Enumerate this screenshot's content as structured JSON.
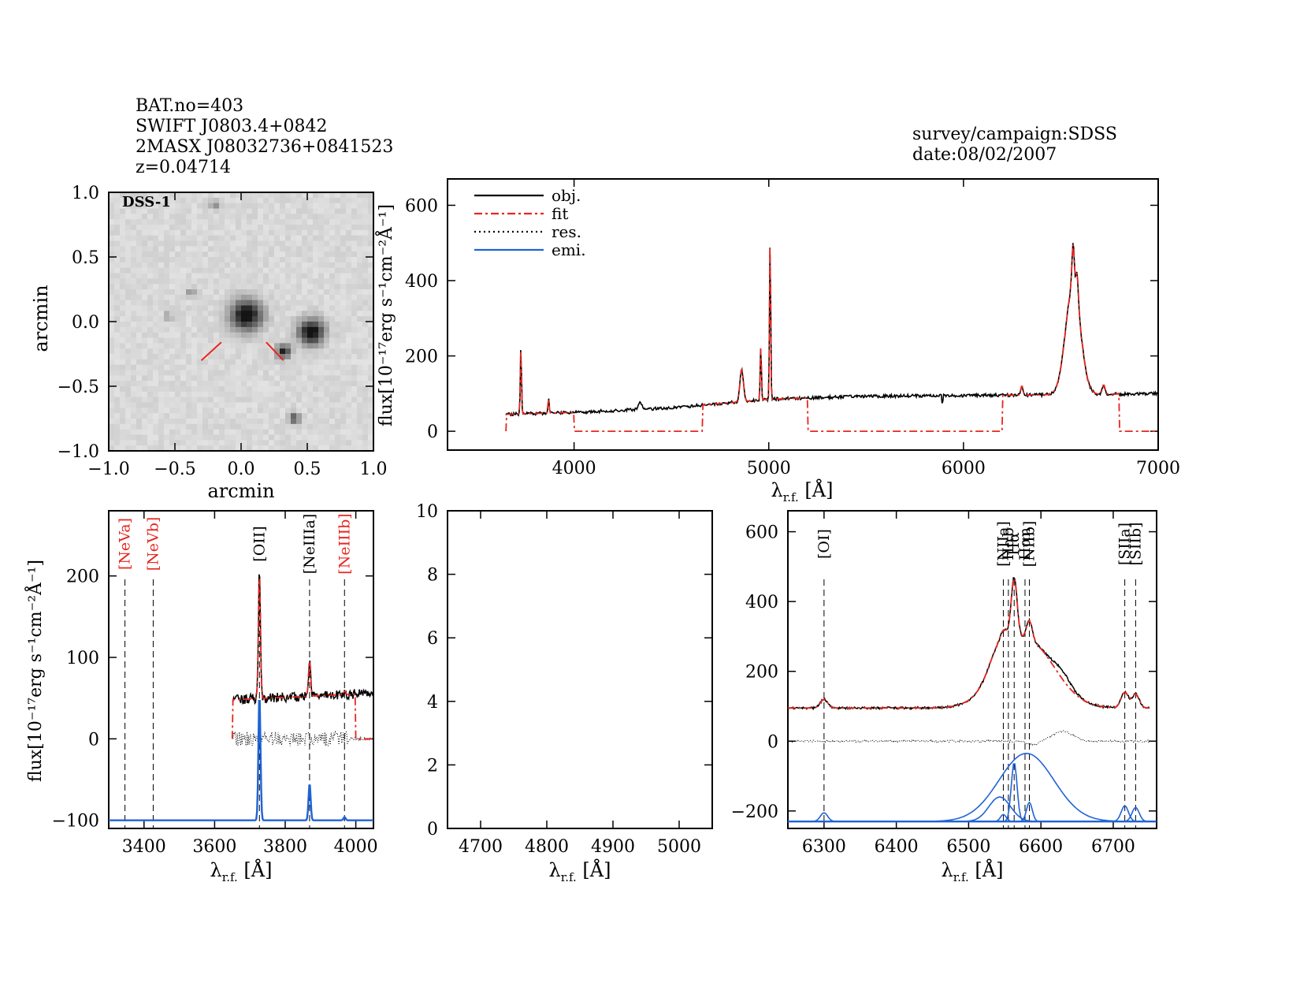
{
  "header": {
    "bat_no": "BAT.no=403",
    "swift": "SWIFT J0803.4+0842",
    "twomass": "2MASX J08032736+0841523",
    "redshift": "z=0.04714",
    "survey": "survey/campaign:SDSS",
    "date": "date:08/02/2007"
  },
  "image_panel": {
    "label": "DSS-1",
    "xlabel": "arcmin",
    "ylabel": "arcmin"
  },
  "common": {
    "flux_label": "flux[10⁻¹⁷erg s⁻¹cm⁻²Å⁻¹]",
    "wave_label_main": "λ",
    "wave_label_sub": "r.f.",
    "wave_label_unit": " [Å]"
  },
  "colors": {
    "object": "#000000",
    "fit": "#e8261f",
    "residual": "#000000",
    "emission": "#1f63d6"
  },
  "chart_data": [
    {
      "id": "dss_image",
      "type": "heatmap",
      "xlim": [
        -1.0,
        1.0
      ],
      "ylim": [
        -1.0,
        1.0
      ],
      "xticks": [
        "−1.0",
        "−0.5",
        "0.0",
        "0.5",
        "1.0"
      ],
      "yticks": [
        "−1.0",
        "−0.5",
        "0.0",
        "0.5",
        "1.0"
      ],
      "sources": [
        {
          "x": 0.04,
          "y": 0.05,
          "r": 0.11,
          "strength": 1.0
        },
        {
          "x": 0.53,
          "y": -0.08,
          "r": 0.09,
          "strength": 1.0
        },
        {
          "x": 0.32,
          "y": -0.23,
          "r": 0.05,
          "strength": 0.8
        },
        {
          "x": 0.4,
          "y": -0.75,
          "r": 0.04,
          "strength": 0.6
        },
        {
          "x": -0.2,
          "y": 0.9,
          "r": 0.035,
          "strength": 0.35
        },
        {
          "x": -0.38,
          "y": 0.22,
          "r": 0.035,
          "strength": 0.3
        },
        {
          "x": -0.55,
          "y": 0.04,
          "r": 0.03,
          "strength": 0.3
        }
      ],
      "markers": [
        {
          "x1": -0.3,
          "y1": -0.3,
          "x2": -0.15,
          "y2": -0.16
        },
        {
          "x1": 0.19,
          "y1": -0.16,
          "x2": 0.32,
          "y2": -0.3
        }
      ]
    },
    {
      "id": "full_spectrum",
      "type": "line",
      "xlim": [
        3350,
        7000
      ],
      "ylim": [
        -50,
        670
      ],
      "xticks": [
        4000,
        5000,
        6000,
        7000
      ],
      "yticks": [
        0,
        200,
        400,
        600
      ],
      "legend": [
        "obj.",
        "fit",
        "res.",
        "emi."
      ],
      "legend_position": "top-left",
      "continuum": [
        [
          3650,
          45
        ],
        [
          4000,
          50
        ],
        [
          4500,
          62
        ],
        [
          5000,
          85
        ],
        [
          5500,
          93
        ],
        [
          6000,
          95
        ],
        [
          6500,
          97
        ],
        [
          7000,
          100
        ]
      ],
      "lines": [
        {
          "x": 3727,
          "peak": 175,
          "w": 3
        },
        {
          "x": 3869,
          "peak": 40,
          "w": 3
        },
        {
          "x": 4340,
          "peak": 20,
          "w": 8
        },
        {
          "x": 4861,
          "peak": 85,
          "w": 9
        },
        {
          "x": 4959,
          "peak": 145,
          "w": 3
        },
        {
          "x": 5007,
          "peak": 425,
          "w": 3
        },
        {
          "x": 6300,
          "peak": 25,
          "w": 5
        },
        {
          "x": 6563,
          "peak": 290,
          "w": 38
        },
        {
          "x": 6563,
          "peak": 110,
          "w": 6
        },
        {
          "x": 6584,
          "peak": 70,
          "w": 6
        },
        {
          "x": 6720,
          "peak": 25,
          "w": 7
        }
      ],
      "fit_mask": [
        [
          3650,
          3650
        ],
        [
          4000,
          4660
        ],
        [
          5200,
          6200
        ],
        [
          6800,
          7000
        ]
      ]
    },
    {
      "id": "oii_panel",
      "type": "line",
      "xlim": [
        3300,
        4050
      ],
      "ylim": [
        -110,
        280
      ],
      "xticks": [
        3400,
        3600,
        3800,
        4000
      ],
      "yticks": [
        -100,
        0,
        100,
        200
      ],
      "emission_offset": -100,
      "lines": [
        {
          "label": "[NeVa]",
          "x": 3346,
          "color": "red"
        },
        {
          "label": "[NeVb]",
          "x": 3426,
          "color": "red"
        },
        {
          "label": "[OII]",
          "x": 3727,
          "color": "black"
        },
        {
          "label": "[NeIIIa]",
          "x": 3869,
          "color": "black"
        },
        {
          "label": "[NeIIIb]",
          "x": 3968,
          "color": "red"
        }
      ],
      "data_range": [
        3650,
        4050
      ],
      "continuum": 48,
      "components": [
        {
          "x": 3727,
          "amp": 155,
          "w": 3
        },
        {
          "x": 3869,
          "amp": 45,
          "w": 3
        },
        {
          "x": 3968,
          "amp": 4,
          "w": 3
        }
      ]
    },
    {
      "id": "hbeta_panel",
      "type": "line",
      "xlim": [
        4650,
        5050
      ],
      "ylim": [
        0,
        10
      ],
      "xticks": [
        4700,
        4800,
        4900,
        5000
      ],
      "yticks": [
        0,
        2,
        4,
        6,
        8,
        10
      ]
    },
    {
      "id": "halpha_panel",
      "type": "line",
      "xlim": [
        6250,
        6760
      ],
      "ylim": [
        -250,
        660
      ],
      "xticks": [
        6300,
        6400,
        6500,
        6600,
        6700
      ],
      "yticks": [
        -200,
        0,
        200,
        400,
        600
      ],
      "emission_offset": -230,
      "lines": [
        {
          "label": "[OI]",
          "x": 6300,
          "color": "black"
        },
        {
          "label": "[NIIa]",
          "x": 6548,
          "color": "black"
        },
        {
          "label": "Hα",
          "x": 6563,
          "color": "black"
        },
        {
          "label": "Hαb",
          "x": 6555,
          "color": "black"
        },
        {
          "label": "[NIIb]",
          "x": 6584,
          "color": "black"
        },
        {
          "label": "Hαn",
          "x": 6578,
          "color": "black"
        },
        {
          "label": "[SIIa]",
          "x": 6716,
          "color": "black"
        },
        {
          "label": "[SIIb]",
          "x": 6731,
          "color": "black"
        }
      ],
      "continuum": 95,
      "components": [
        {
          "x": 6300,
          "amp": 25,
          "w": 5
        },
        {
          "x": 6580,
          "amp": 195,
          "w": 38
        },
        {
          "x": 6543,
          "amp": 70,
          "w": 15
        },
        {
          "x": 6548,
          "amp": 20,
          "w": 4
        },
        {
          "x": 6563,
          "amp": 170,
          "w": 4
        },
        {
          "x": 6584,
          "amp": 55,
          "w": 4
        },
        {
          "x": 6716,
          "amp": 45,
          "w": 5
        },
        {
          "x": 6731,
          "amp": 40,
          "w": 5
        }
      ]
    }
  ]
}
